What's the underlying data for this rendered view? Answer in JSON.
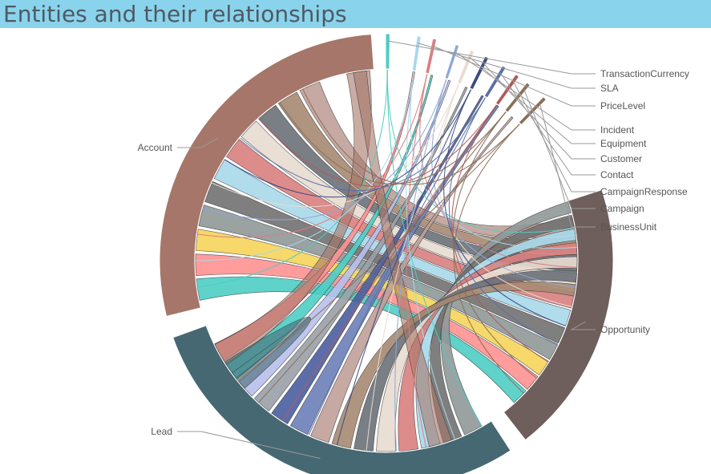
{
  "header": {
    "title": "Entities and their relationships"
  },
  "chart_data": {
    "type": "chord",
    "title": "Entities and their relationships",
    "entities": [
      {
        "name": "Account",
        "color": "#a57669"
      },
      {
        "name": "TransactionCurrency",
        "color": "#4ecdc4"
      },
      {
        "name": "SLA",
        "color": "#a8d8ea"
      },
      {
        "name": "PriceLevel",
        "color": "#d98080"
      },
      {
        "name": "Incident",
        "color": "#8da8d8"
      },
      {
        "name": "Equipment",
        "color": "#e8dcd0"
      },
      {
        "name": "Customer",
        "color": "#3b4a82"
      },
      {
        "name": "Contact",
        "color": "#5b6fa8"
      },
      {
        "name": "CampaignResponse",
        "color": "#b05a5a"
      },
      {
        "name": "Campaign",
        "color": "#8a6e58"
      },
      {
        "name": "BusinessUnit",
        "color": "#8a6e58"
      },
      {
        "name": "Opportunity",
        "color": "#6e5e5c"
      },
      {
        "name": "Lead",
        "color": "#466872"
      }
    ]
  }
}
